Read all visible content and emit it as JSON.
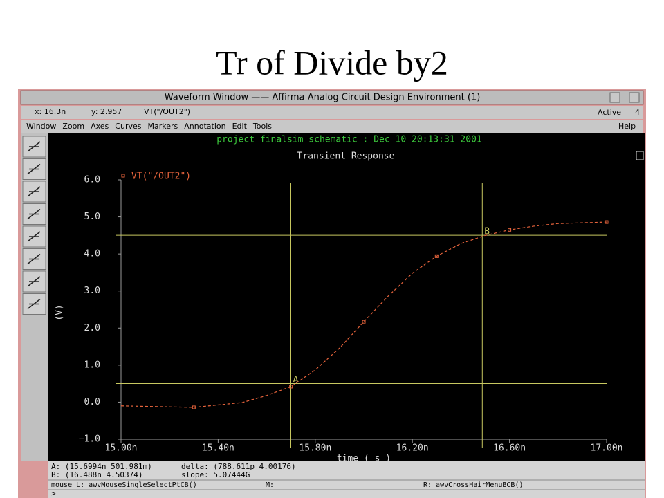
{
  "slide": {
    "title": "Tr of Divide by2"
  },
  "window": {
    "title": "Waveform Window —— Affirma Analog Circuit Design Environment (1)"
  },
  "status": {
    "x": "x: 16.3n",
    "y": "y: 2.957",
    "trace": "VT(\"/OUT2\")",
    "mode": "Active",
    "count": "4"
  },
  "menu": {
    "items": [
      "Window",
      "Zoom",
      "Axes",
      "Curves",
      "Markers",
      "Annotation",
      "Edit",
      "Tools"
    ],
    "help": "Help"
  },
  "info": {
    "a": "A: (15.6994n 501.981m)",
    "delta": "delta: (788.611p 4.00176)",
    "b": "B: (16.488n 4.50374)",
    "slope": "slope: 5.07444G",
    "mouse_l": "mouse L: awvMouseSingleSelectPtCB()",
    "mouse_m": "M:",
    "mouse_r": "R: awvCrossHairMenuBCB()",
    "prompt": ">"
  },
  "chart_data": {
    "type": "line",
    "header": "project finalsim schematic : Dec 10 20:13:31 2001",
    "title": "Transient Response",
    "xlabel": "time ( s )",
    "ylabel": "(V)",
    "xlim": [
      1.5e-08,
      1.7e-08
    ],
    "xticks": [
      {
        "value": 1.5e-08,
        "label": "15.00n"
      },
      {
        "value": 1.54e-08,
        "label": "15.40n"
      },
      {
        "value": 1.58e-08,
        "label": "15.80n"
      },
      {
        "value": 1.62e-08,
        "label": "16.20n"
      },
      {
        "value": 1.66e-08,
        "label": "16.60n"
      },
      {
        "value": 1.7e-08,
        "label": "17.00n"
      }
    ],
    "ylim": [
      -1,
      6
    ],
    "yticks": [
      {
        "value": -1,
        "label": "−1.0"
      },
      {
        "value": 0,
        "label": "0.0"
      },
      {
        "value": 1,
        "label": "1.0"
      },
      {
        "value": 2,
        "label": "2.0"
      },
      {
        "value": 3,
        "label": "3.0"
      },
      {
        "value": 4,
        "label": "4.0"
      },
      {
        "value": 5,
        "label": "5.0"
      },
      {
        "value": 6,
        "label": "6.0"
      }
    ],
    "grid": false,
    "series": [
      {
        "name": "VT(\"/OUT2\")",
        "color": "#e8643c",
        "x": [
          1.5e-08,
          1.53e-08,
          1.55e-08,
          1.56e-08,
          1.57e-08,
          1.58e-08,
          1.59e-08,
          1.6e-08,
          1.61e-08,
          1.62e-08,
          1.63e-08,
          1.64e-08,
          1.65e-08,
          1.66e-08,
          1.67e-08,
          1.68e-08,
          1.7e-08
        ],
        "values": [
          -0.1,
          -0.14,
          -0.01,
          0.18,
          0.42,
          0.87,
          1.46,
          2.17,
          2.86,
          3.48,
          3.94,
          4.28,
          4.5,
          4.65,
          4.75,
          4.82,
          4.86
        ]
      }
    ],
    "markers": [
      {
        "label": "A",
        "x": 1.56994e-08,
        "y": 0.501981,
        "color": "#c8c860"
      },
      {
        "label": "B",
        "x": 1.6488e-08,
        "y": 4.50374,
        "color": "#c8c860"
      }
    ]
  }
}
